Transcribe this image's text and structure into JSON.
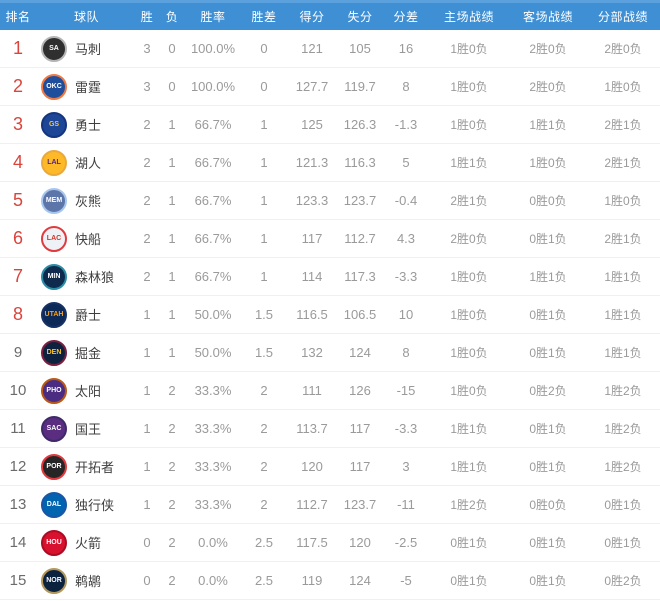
{
  "header": {
    "columns": [
      "排名",
      "球队",
      "胜",
      "负",
      "胜率",
      "胜差",
      "得分",
      "失分",
      "分差",
      "主场战绩",
      "客场战绩",
      "分部战绩"
    ]
  },
  "colors": {
    "header_bg": "#3E8FD4",
    "header_top_strip": "#5BA1DE",
    "header_text": "#FFFFFF",
    "rank_red": "#D9453C",
    "rank_gray": "#6B6B6B",
    "value_text": "#9A9A9A",
    "team_text": "#3F3F3F",
    "row_divider": "#F0F0F0"
  },
  "standings": [
    {
      "rank": "1",
      "rank_style": "red",
      "team": "马刺",
      "abbr": "SA",
      "badge": {
        "ring": "#B5B5B5",
        "bg": "#2F2F2F",
        "text": "#FFFFFF"
      },
      "wins": "3",
      "losses": "0",
      "win_pct": "100.0%",
      "games_behind": "0",
      "points_for": "121",
      "points_against": "105",
      "point_diff": "16",
      "home_record": "1胜0负",
      "away_record": "2胜0负",
      "division_record": "2胜0负"
    },
    {
      "rank": "2",
      "rank_style": "red",
      "team": "雷霆",
      "abbr": "OKC",
      "badge": {
        "ring": "#EF7941",
        "bg": "#1F4E9C",
        "text": "#FFFFFF"
      },
      "wins": "3",
      "losses": "0",
      "win_pct": "100.0%",
      "games_behind": "0",
      "points_for": "127.7",
      "points_against": "119.7",
      "point_diff": "8",
      "home_record": "1胜0负",
      "away_record": "2胜0负",
      "division_record": "1胜0负"
    },
    {
      "rank": "3",
      "rank_style": "red",
      "team": "勇士",
      "abbr": "GS",
      "badge": {
        "ring": "#16357F",
        "bg": "#1D4696",
        "text": "#FFC72C"
      },
      "wins": "2",
      "losses": "1",
      "win_pct": "66.7%",
      "games_behind": "1",
      "points_for": "125",
      "points_against": "126.3",
      "point_diff": "-1.3",
      "home_record": "1胜0负",
      "away_record": "1胜1负",
      "division_record": "2胜1负"
    },
    {
      "rank": "4",
      "rank_style": "red",
      "team": "湖人",
      "abbr": "LAL",
      "badge": {
        "ring": "#E9A93C",
        "bg": "#FDB927",
        "text": "#552583"
      },
      "wins": "2",
      "losses": "1",
      "win_pct": "66.7%",
      "games_behind": "1",
      "points_for": "121.3",
      "points_against": "116.3",
      "point_diff": "5",
      "home_record": "1胜1负",
      "away_record": "1胜0负",
      "division_record": "2胜1负"
    },
    {
      "rank": "5",
      "rank_style": "red",
      "team": "灰熊",
      "abbr": "MEM",
      "badge": {
        "ring": "#A7C6EE",
        "bg": "#5D76A9",
        "text": "#FFFFFF"
      },
      "wins": "2",
      "losses": "1",
      "win_pct": "66.7%",
      "games_behind": "1",
      "points_for": "123.3",
      "points_against": "123.7",
      "point_diff": "-0.4",
      "home_record": "2胜1负",
      "away_record": "0胜0负",
      "division_record": "1胜0负"
    },
    {
      "rank": "6",
      "rank_style": "red",
      "team": "快船",
      "abbr": "LAC",
      "badge": {
        "ring": "#E03A3E",
        "bg": "#EEF2F6",
        "text": "#D0342C"
      },
      "wins": "2",
      "losses": "1",
      "win_pct": "66.7%",
      "games_behind": "1",
      "points_for": "117",
      "points_against": "112.7",
      "point_diff": "4.3",
      "home_record": "2胜0负",
      "away_record": "0胜1负",
      "division_record": "2胜1负"
    },
    {
      "rank": "7",
      "rank_style": "red",
      "team": "森林狼",
      "abbr": "MIN",
      "badge": {
        "ring": "#2A8CA5",
        "bg": "#0E2A4D",
        "text": "#FFFFFF"
      },
      "wins": "2",
      "losses": "1",
      "win_pct": "66.7%",
      "games_behind": "1",
      "points_for": "114",
      "points_against": "117.3",
      "point_diff": "-3.3",
      "home_record": "1胜0负",
      "away_record": "1胜1负",
      "division_record": "1胜1负"
    },
    {
      "rank": "8",
      "rank_style": "red",
      "team": "爵士",
      "abbr": "UTAH",
      "badge": {
        "ring": "#163166",
        "bg": "#0D2957",
        "text": "#F9A01B"
      },
      "wins": "1",
      "losses": "1",
      "win_pct": "50.0%",
      "games_behind": "1.5",
      "points_for": "116.5",
      "points_against": "106.5",
      "point_diff": "10",
      "home_record": "1胜0负",
      "away_record": "0胜1负",
      "division_record": "1胜1负"
    },
    {
      "rank": "9",
      "rank_style": "gray",
      "team": "掘金",
      "abbr": "DEN",
      "badge": {
        "ring": "#7A1F3D",
        "bg": "#0E2240",
        "text": "#FEC524"
      },
      "wins": "1",
      "losses": "1",
      "win_pct": "50.0%",
      "games_behind": "1.5",
      "points_for": "132",
      "points_against": "124",
      "point_diff": "8",
      "home_record": "1胜0负",
      "away_record": "0胜1负",
      "division_record": "1胜1负"
    },
    {
      "rank": "10",
      "rank_style": "gray",
      "team": "太阳",
      "abbr": "PHO",
      "badge": {
        "ring": "#B95915",
        "bg": "#4A2D82",
        "text": "#FFFFFF"
      },
      "wins": "1",
      "losses": "2",
      "win_pct": "33.3%",
      "games_behind": "2",
      "points_for": "111",
      "points_against": "126",
      "point_diff": "-15",
      "home_record": "1胜0负",
      "away_record": "0胜2负",
      "division_record": "1胜2负"
    },
    {
      "rank": "11",
      "rank_style": "gray",
      "team": "国王",
      "abbr": "SAC",
      "badge": {
        "ring": "#3F2A68",
        "bg": "#5A2D81",
        "text": "#FFFFFF"
      },
      "wins": "1",
      "losses": "2",
      "win_pct": "33.3%",
      "games_behind": "2",
      "points_for": "113.7",
      "points_against": "117",
      "point_diff": "-3.3",
      "home_record": "1胜1负",
      "away_record": "0胜1负",
      "division_record": "1胜2负"
    },
    {
      "rank": "12",
      "rank_style": "gray",
      "team": "开拓者",
      "abbr": "POR",
      "badge": {
        "ring": "#E03A3E",
        "bg": "#262626",
        "text": "#FFFFFF"
      },
      "wins": "1",
      "losses": "2",
      "win_pct": "33.3%",
      "games_behind": "2",
      "points_for": "120",
      "points_against": "117",
      "point_diff": "3",
      "home_record": "1胜1负",
      "away_record": "0胜1负",
      "division_record": "1胜2负"
    },
    {
      "rank": "13",
      "rank_style": "gray",
      "team": "独行侠",
      "abbr": "DAL",
      "badge": {
        "ring": "#1A56A5",
        "bg": "#0064B1",
        "text": "#FFFFFF"
      },
      "wins": "1",
      "losses": "2",
      "win_pct": "33.3%",
      "games_behind": "2",
      "points_for": "112.7",
      "points_against": "123.7",
      "point_diff": "-11",
      "home_record": "1胜2负",
      "away_record": "0胜0负",
      "division_record": "0胜1负"
    },
    {
      "rank": "14",
      "rank_style": "gray",
      "team": "火箭",
      "abbr": "HOU",
      "badge": {
        "ring": "#AB0C24",
        "bg": "#D8112E",
        "text": "#FFFFFF"
      },
      "wins": "0",
      "losses": "2",
      "win_pct": "0.0%",
      "games_behind": "2.5",
      "points_for": "117.5",
      "points_against": "120",
      "point_diff": "-2.5",
      "home_record": "0胜1负",
      "away_record": "0胜1负",
      "division_record": "0胜1负"
    },
    {
      "rank": "15",
      "rank_style": "gray",
      "team": "鹈鹕",
      "abbr": "NOR",
      "badge": {
        "ring": "#B4975A",
        "bg": "#0C2340",
        "text": "#FFFFFF"
      },
      "wins": "0",
      "losses": "2",
      "win_pct": "0.0%",
      "games_behind": "2.5",
      "points_for": "119",
      "points_against": "124",
      "point_diff": "-5",
      "home_record": "0胜1负",
      "away_record": "0胜1负",
      "division_record": "0胜2负"
    }
  ]
}
